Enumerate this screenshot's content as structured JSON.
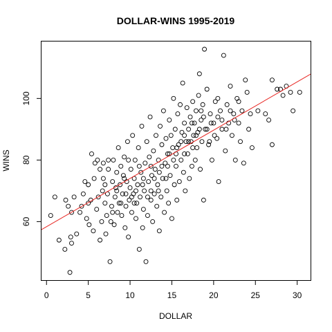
{
  "chart_data": {
    "type": "scatter",
    "title": "DOLLAR-WINS 1995-2019",
    "xlabel": "DOLLAR",
    "ylabel": "WINS",
    "xlim": [
      -0.6,
      31.6
    ],
    "ylim": [
      41,
      118.5
    ],
    "xticks": [
      0,
      5,
      10,
      15,
      20,
      25,
      30
    ],
    "yticks": [
      60,
      80,
      100
    ],
    "grid": false,
    "point_color": "#000000",
    "fit_color": "#e8231f",
    "fit_line": {
      "x": [
        -0.6,
        31.6
      ],
      "y": [
        57.4,
        107.9
      ]
    },
    "points": [
      [
        0.5,
        62
      ],
      [
        1.0,
        68
      ],
      [
        1.5,
        54
      ],
      [
        2.2,
        51
      ],
      [
        2.3,
        67
      ],
      [
        2.6,
        65
      ],
      [
        2.8,
        43.5
      ],
      [
        2.9,
        55
      ],
      [
        3.0,
        53
      ],
      [
        3.0,
        63
      ],
      [
        3.3,
        68
      ],
      [
        3.6,
        56
      ],
      [
        4.0,
        63
      ],
      [
        4.2,
        65
      ],
      [
        4.4,
        69
      ],
      [
        4.6,
        73
      ],
      [
        4.8,
        61
      ],
      [
        5.0,
        66
      ],
      [
        5.0,
        72
      ],
      [
        5.1,
        59
      ],
      [
        5.3,
        67
      ],
      [
        5.4,
        82
      ],
      [
        5.6,
        57
      ],
      [
        5.7,
        74
      ],
      [
        5.8,
        79
      ],
      [
        6.0,
        64
      ],
      [
        6.1,
        80
      ],
      [
        6.2,
        68
      ],
      [
        6.4,
        54
      ],
      [
        6.4,
        77
      ],
      [
        6.6,
        60
      ],
      [
        6.7,
        70
      ],
      [
        6.8,
        74
      ],
      [
        7.0,
        66
      ],
      [
        7.0,
        72
      ],
      [
        7.1,
        56
      ],
      [
        7.2,
        62
      ],
      [
        7.3,
        69
      ],
      [
        7.4,
        77
      ],
      [
        7.6,
        47
      ],
      [
        7.7,
        60
      ],
      [
        7.8,
        65
      ],
      [
        7.9,
        73
      ],
      [
        8.0,
        80
      ],
      [
        8.1,
        59
      ],
      [
        8.2,
        68
      ],
      [
        8.3,
        71
      ],
      [
        8.4,
        76
      ],
      [
        8.5,
        63
      ],
      [
        8.6,
        84
      ],
      [
        8.7,
        66
      ],
      [
        8.8,
        72
      ],
      [
        8.9,
        78
      ],
      [
        9.0,
        62
      ],
      [
        9.1,
        69
      ],
      [
        9.2,
        75
      ],
      [
        9.3,
        81
      ],
      [
        9.4,
        58
      ],
      [
        9.5,
        65
      ],
      [
        9.6,
        73
      ],
      [
        9.7,
        86
      ],
      [
        9.8,
        55
      ],
      [
        9.9,
        67
      ],
      [
        10.0,
        71
      ],
      [
        10.1,
        77
      ],
      [
        10.2,
        63
      ],
      [
        10.3,
        88
      ],
      [
        10.4,
        69
      ],
      [
        10.5,
        74
      ],
      [
        10.6,
        80
      ],
      [
        10.7,
        61
      ],
      [
        10.8,
        66
      ],
      [
        10.9,
        72
      ],
      [
        11.0,
        84
      ],
      [
        11.1,
        51
      ],
      [
        11.2,
        68
      ],
      [
        11.3,
        76
      ],
      [
        11.4,
        91
      ],
      [
        11.5,
        58
      ],
      [
        11.6,
        64
      ],
      [
        11.7,
        70
      ],
      [
        11.8,
        79
      ],
      [
        11.9,
        47
      ],
      [
        12.0,
        86
      ],
      [
        12.1,
        62
      ],
      [
        12.2,
        73
      ],
      [
        12.3,
        81
      ],
      [
        12.4,
        94
      ],
      [
        12.5,
        67
      ],
      [
        12.6,
        75
      ],
      [
        12.7,
        60
      ],
      [
        12.8,
        83
      ],
      [
        12.9,
        69
      ],
      [
        13.0,
        77
      ],
      [
        13.1,
        88
      ],
      [
        13.2,
        65
      ],
      [
        13.3,
        72
      ],
      [
        13.4,
        80
      ],
      [
        13.5,
        57
      ],
      [
        13.6,
        91
      ],
      [
        13.7,
        68
      ],
      [
        13.8,
        85
      ],
      [
        13.9,
        74
      ],
      [
        14.0,
        96
      ],
      [
        14.1,
        63
      ],
      [
        14.2,
        79
      ],
      [
        14.3,
        87
      ],
      [
        14.4,
        70
      ],
      [
        14.5,
        82
      ],
      [
        14.6,
        66
      ],
      [
        14.7,
        93
      ],
      [
        14.8,
        75
      ],
      [
        14.9,
        88
      ],
      [
        15.0,
        61
      ],
      [
        15.1,
        84
      ],
      [
        15.2,
        100
      ],
      [
        15.3,
        72
      ],
      [
        15.4,
        90
      ],
      [
        15.5,
        78
      ],
      [
        15.6,
        67
      ],
      [
        15.7,
        95
      ],
      [
        15.8,
        85
      ],
      [
        15.9,
        73
      ],
      [
        16.0,
        98
      ],
      [
        16.1,
        80
      ],
      [
        16.2,
        89
      ],
      [
        16.3,
        105
      ],
      [
        16.4,
        76
      ],
      [
        16.5,
        92
      ],
      [
        16.6,
        70
      ],
      [
        16.7,
        86
      ],
      [
        16.8,
        97
      ],
      [
        16.9,
        82
      ],
      [
        17.0,
        90
      ],
      [
        17.1,
        74
      ],
      [
        17.2,
        94
      ],
      [
        17.3,
        86
      ],
      [
        17.4,
        78
      ],
      [
        17.5,
        99
      ],
      [
        17.6,
        88
      ],
      [
        17.7,
        92
      ],
      [
        17.8,
        80
      ],
      [
        17.9,
        96
      ],
      [
        18.0,
        84
      ],
      [
        18.1,
        89
      ],
      [
        18.2,
        101
      ],
      [
        18.3,
        108
      ],
      [
        18.4,
        77
      ],
      [
        18.5,
        93
      ],
      [
        18.6,
        86
      ],
      [
        18.7,
        98
      ],
      [
        18.8,
        67
      ],
      [
        18.9,
        116
      ],
      [
        19.0,
        90
      ],
      [
        19.2,
        103
      ],
      [
        19.4,
        85
      ],
      [
        19.6,
        95
      ],
      [
        19.8,
        80
      ],
      [
        20.0,
        92
      ],
      [
        20.2,
        99
      ],
      [
        20.4,
        87
      ],
      [
        20.6,
        73
      ],
      [
        20.8,
        96
      ],
      [
        21.0,
        90
      ],
      [
        21.2,
        114
      ],
      [
        21.4,
        83
      ],
      [
        21.6,
        98
      ],
      [
        21.8,
        92
      ],
      [
        22.0,
        104
      ],
      [
        22.2,
        88
      ],
      [
        22.4,
        95
      ],
      [
        22.6,
        80
      ],
      [
        22.8,
        100
      ],
      [
        23.0,
        92
      ],
      [
        23.2,
        86
      ],
      [
        23.4,
        96
      ],
      [
        23.6,
        79
      ],
      [
        23.8,
        106
      ],
      [
        24.0,
        102
      ],
      [
        24.2,
        90
      ],
      [
        24.4,
        95
      ],
      [
        24.6,
        84
      ],
      [
        25.3,
        96
      ],
      [
        26.2,
        95
      ],
      [
        26.6,
        93
      ],
      [
        27.0,
        85
      ],
      [
        27.0,
        106
      ],
      [
        27.6,
        103
      ],
      [
        28.0,
        103
      ],
      [
        28.3,
        101
      ],
      [
        28.7,
        104
      ],
      [
        29.2,
        102
      ],
      [
        29.5,
        96
      ],
      [
        30.3,
        102
      ],
      [
        6.8,
        79
      ],
      [
        7.4,
        80
      ],
      [
        7.9,
        63
      ],
      [
        8.4,
        70
      ],
      [
        8.9,
        66
      ],
      [
        9.3,
        74
      ],
      [
        9.8,
        80
      ],
      [
        10.2,
        68
      ],
      [
        10.7,
        70
      ],
      [
        11.1,
        78
      ],
      [
        11.6,
        74
      ],
      [
        12.1,
        68
      ],
      [
        12.5,
        78
      ],
      [
        12.9,
        74
      ],
      [
        13.4,
        70
      ],
      [
        13.8,
        78
      ],
      [
        14.3,
        74
      ],
      [
        14.7,
        82
      ],
      [
        15.2,
        80
      ],
      [
        15.6,
        84
      ],
      [
        16.1,
        86
      ],
      [
        16.5,
        82
      ],
      [
        17.0,
        86
      ],
      [
        17.4,
        92
      ],
      [
        17.9,
        88
      ],
      [
        18.3,
        90
      ],
      [
        18.8,
        94
      ],
      [
        19.2,
        90
      ],
      [
        19.7,
        92
      ],
      [
        20.1,
        88
      ],
      [
        20.5,
        94
      ],
      [
        21.0,
        93
      ],
      [
        21.5,
        90
      ],
      [
        22.0,
        96
      ],
      [
        22.5,
        93
      ],
      [
        23.0,
        99
      ],
      [
        9.5,
        69
      ],
      [
        10.5,
        66
      ],
      [
        11.5,
        72
      ],
      [
        12.5,
        70
      ],
      [
        13.5,
        76
      ],
      [
        14.5,
        78
      ],
      [
        15.5,
        82
      ],
      [
        16.5,
        88
      ],
      [
        17.5,
        84
      ],
      [
        18.5,
        96
      ],
      [
        19.5,
        86
      ],
      [
        20.5,
        100
      ]
    ]
  }
}
